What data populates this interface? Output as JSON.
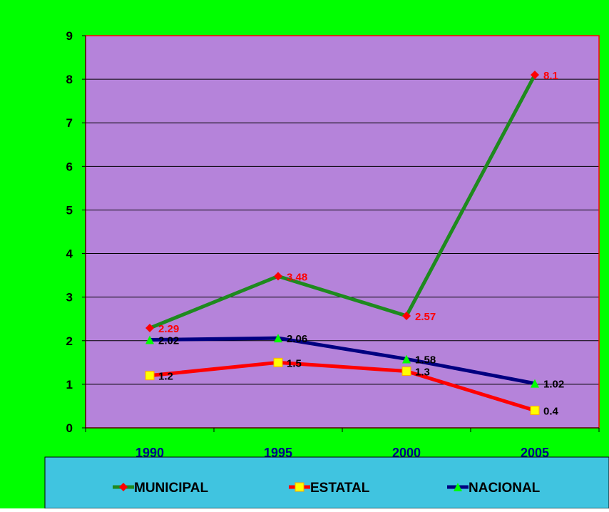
{
  "chart_data": {
    "type": "line",
    "categories": [
      "1990",
      "1995",
      "2000",
      "2005"
    ],
    "ylim": [
      0,
      9
    ],
    "yticks": [
      "0",
      "1",
      "2",
      "3",
      "4",
      "5",
      "6",
      "7",
      "8",
      "9"
    ],
    "grid": true,
    "legend_position": "bottom",
    "colors": {
      "background": "#00ff00",
      "plot": "#b583da",
      "plot_border": "#ff0000",
      "legend": "#40c4e0"
    },
    "series": [
      {
        "name": "MUNICIPAL",
        "values": [
          2.29,
          3.48,
          2.57,
          8.1
        ],
        "labels": [
          "2.29",
          "3.48",
          "2.57",
          "8.1"
        ],
        "line_color": "#1e8a1e",
        "marker": "diamond",
        "marker_color": "#ff0000",
        "label_color": "#ff0000"
      },
      {
        "name": "ESTATAL",
        "values": [
          1.2,
          1.5,
          1.3,
          0.4
        ],
        "labels": [
          "1.2",
          "1.5",
          "1.3",
          "0.4"
        ],
        "line_color": "#ff0000",
        "marker": "square",
        "marker_color": "#ffff00",
        "label_color": "#000000"
      },
      {
        "name": "NACIONAL",
        "values": [
          2.02,
          2.06,
          1.58,
          1.02
        ],
        "labels": [
          "2.02",
          "2.06",
          "1.58",
          "1.02"
        ],
        "line_color": "#000080",
        "marker": "triangle",
        "marker_color": "#00ff00",
        "label_color": "#000000"
      }
    ]
  }
}
